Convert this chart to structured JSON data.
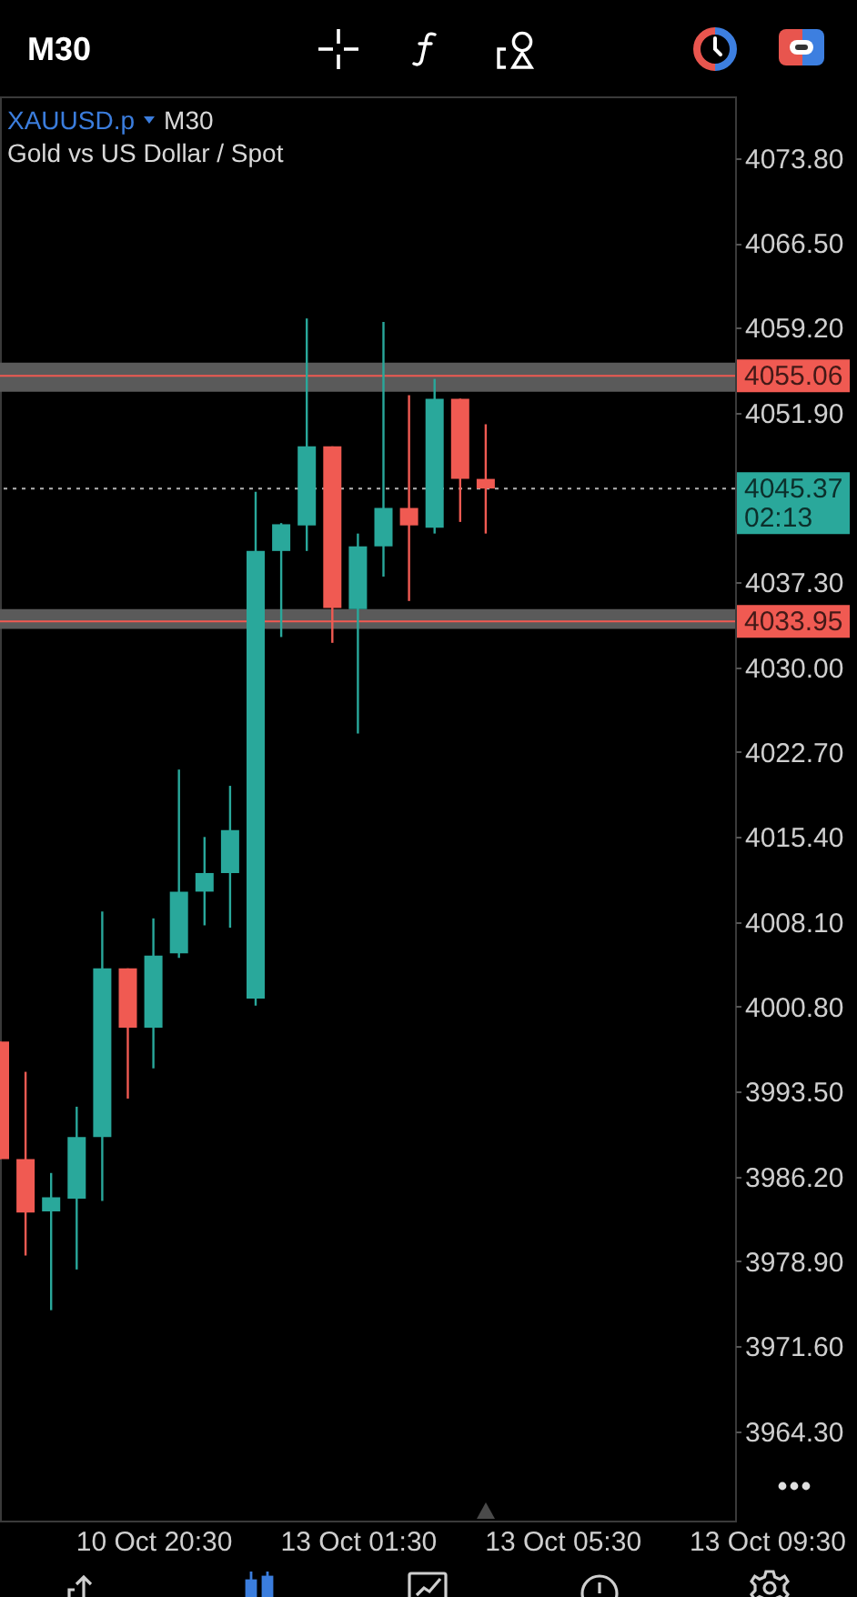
{
  "chart_data": {
    "type": "candlestick",
    "title": "XAUUSD.p",
    "subtitle": "Gold vs US Dollar / Spot",
    "categories": [
      null,
      null,
      null,
      null,
      null,
      null,
      "10 Oct 20:30",
      null,
      null,
      null,
      null,
      null,
      null,
      null,
      "13 Oct 01:30",
      null,
      null,
      null,
      null,
      null,
      null,
      null,
      "13 Oct 05:30",
      null,
      null,
      null,
      null,
      null,
      null,
      null,
      "13 Oct 09:30"
    ],
    "ohlc": [
      [
        3997.8,
        3997.8,
        3987.7,
        3987.7
      ],
      [
        3987.7,
        3995.2,
        3979.4,
        3983.1
      ],
      [
        3983.2,
        3986.5,
        3974.7,
        3984.4
      ],
      [
        3984.3,
        3992.2,
        3978.2,
        3989.6
      ],
      [
        3989.6,
        4009.0,
        3984.1,
        4004.1
      ],
      [
        4004.1,
        4004.1,
        3992.9,
        3999.0
      ],
      [
        3999.0,
        4008.4,
        3995.5,
        4005.2
      ],
      [
        4005.4,
        4021.2,
        4005.0,
        4010.7
      ],
      [
        4010.7,
        4015.4,
        4007.8,
        4012.3
      ],
      [
        4012.3,
        4019.8,
        4007.6,
        4016.0
      ],
      [
        4001.5,
        4045.1,
        4000.9,
        4040.0
      ],
      [
        4040.0,
        4042.4,
        4032.6,
        4042.3
      ],
      [
        4042.2,
        4060.0,
        4040.0,
        4049.0
      ],
      [
        4049.0,
        4049.0,
        4032.1,
        4035.1
      ],
      [
        4035.0,
        4041.5,
        4024.3,
        4040.4
      ],
      [
        4040.4,
        4059.7,
        4037.8,
        4043.7
      ],
      [
        4043.7,
        4053.4,
        4035.7,
        4042.2
      ],
      [
        4042.0,
        4054.8,
        4041.5,
        4053.1
      ],
      [
        4053.1,
        4053.1,
        4042.5,
        4046.2
      ],
      [
        4046.2,
        4050.9,
        4041.5,
        4045.37
      ],
      null,
      null,
      null,
      null,
      null,
      null,
      null,
      null,
      null,
      null,
      null
    ],
    "colors": [
      "#f05a52",
      "#f05a52",
      "#29a89b",
      "#29a89b",
      "#29a89b",
      "#f05a52",
      "#29a89b",
      "#29a89b",
      "#29a89b",
      "#29a89b",
      "#29a89b",
      "#29a89b",
      "#29a89b",
      "#f05a52",
      "#29a89b",
      "#29a89b",
      "#f05a52",
      "#29a89b",
      "#f05a52",
      "#f05a52",
      null,
      null,
      null,
      null,
      null,
      null,
      null,
      null,
      null,
      null,
      null
    ],
    "ylim": [
      3956.6,
      4079.1
    ],
    "yticks": [
      {
        "value": 4073.8,
        "label": "4073.80"
      },
      {
        "value": 4066.5,
        "label": "4066.50"
      },
      {
        "value": 4059.2,
        "label": "4059.20"
      },
      {
        "value": 4051.9,
        "label": "4051.90"
      },
      {
        "value": 4037.3,
        "label": "4037.30"
      },
      {
        "value": 4030,
        "label": "4030.00"
      },
      {
        "value": 4022.7,
        "label": "4022.70"
      },
      {
        "value": 4015.4,
        "label": "4015.40"
      },
      {
        "value": 4008.1,
        "label": "4008.10"
      },
      {
        "value": 4000.8,
        "label": "4000.80"
      },
      {
        "value": 3993.5,
        "label": "3993.50"
      },
      {
        "value": 3986.2,
        "label": "3986.20"
      },
      {
        "value": 3978.9,
        "label": "3978.90"
      },
      {
        "value": 3971.6,
        "label": "3971.60"
      },
      {
        "value": 3964.3,
        "label": "3964.30"
      }
    ],
    "bands": [
      {
        "axis": "y",
        "from": 4053.7,
        "to": 4056.2,
        "color": "#5a5a5a"
      },
      {
        "axis": "y",
        "from": 4033.3,
        "to": 4035.0,
        "color": "#5a5a5a"
      }
    ],
    "ref_lines": [
      {
        "axis": "y",
        "value": 4055.06,
        "label": "4055.06",
        "color": "#f05a52",
        "line_style": "solid"
      },
      {
        "axis": "y",
        "value": 4033.95,
        "label": "4033.95",
        "color": "#f05a52",
        "line_style": "solid"
      },
      {
        "axis": "y",
        "value": 4045.37,
        "label": "4045.37",
        "color": "#b4b4b4",
        "line_style": "dotted"
      }
    ],
    "annotations": [
      "M30",
      "M30",
      "02:13"
    ]
  }
}
